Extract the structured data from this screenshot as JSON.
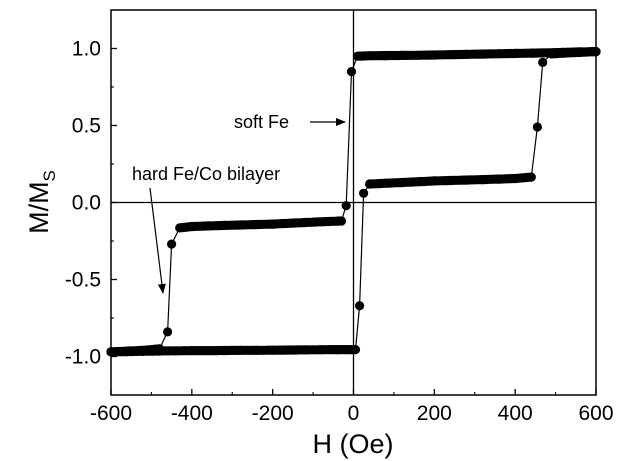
{
  "chart_data": {
    "type": "scatter",
    "xlabel": "H (Oe)",
    "ylabel_main": "M/M",
    "ylabel_sub": "S",
    "xlim": [
      -600,
      600
    ],
    "ylim": [
      -1.25,
      1.25
    ],
    "xticks": [
      -600,
      -400,
      -200,
      0,
      200,
      400,
      600
    ],
    "xtick_labels": [
      "-600",
      "-400",
      "-200",
      "0",
      "200",
      "400",
      "600"
    ],
    "yticks": [
      -1.0,
      -0.5,
      0.0,
      0.5,
      1.0
    ],
    "ytick_labels": [
      "-1.0",
      "-0.5",
      "0.0",
      "0.5",
      "1.0"
    ],
    "reference_lines": {
      "x": 0,
      "y": 0
    },
    "marker_color": "#000000",
    "annotations": [
      {
        "text": "soft Fe",
        "points_to": [
          -10,
          0.55
        ]
      },
      {
        "text": "hard Fe/Co bilayer",
        "points_to": [
          -465,
          -0.6
        ]
      }
    ],
    "series": [
      {
        "branch": "descending",
        "points": [
          [
            600,
            0.98
          ],
          [
            560,
            0.978
          ],
          [
            520,
            0.975
          ],
          [
            480,
            0.972
          ],
          [
            440,
            0.97
          ],
          [
            400,
            0.968
          ],
          [
            360,
            0.966
          ],
          [
            320,
            0.964
          ],
          [
            280,
            0.962
          ],
          [
            240,
            0.96
          ],
          [
            200,
            0.958
          ],
          [
            160,
            0.956
          ],
          [
            120,
            0.955
          ],
          [
            80,
            0.954
          ],
          [
            40,
            0.953
          ],
          [
            10,
            0.95
          ],
          [
            -5,
            0.85
          ],
          [
            -18,
            -0.02
          ],
          [
            -30,
            -0.12
          ],
          [
            -80,
            -0.125
          ],
          [
            -120,
            -0.13
          ],
          [
            -160,
            -0.135
          ],
          [
            -200,
            -0.14
          ],
          [
            -240,
            -0.143
          ],
          [
            -280,
            -0.146
          ],
          [
            -320,
            -0.149
          ],
          [
            -360,
            -0.152
          ],
          [
            -400,
            -0.156
          ],
          [
            -430,
            -0.165
          ],
          [
            -450,
            -0.27
          ],
          [
            -460,
            -0.84
          ],
          [
            -480,
            -0.95
          ],
          [
            -520,
            -0.96
          ],
          [
            -560,
            -0.965
          ],
          [
            -600,
            -0.97
          ]
        ]
      },
      {
        "branch": "ascending",
        "points": [
          [
            -600,
            -0.97
          ],
          [
            -560,
            -0.968
          ],
          [
            -520,
            -0.966
          ],
          [
            -480,
            -0.964
          ],
          [
            -440,
            -0.963
          ],
          [
            -400,
            -0.962
          ],
          [
            -360,
            -0.962
          ],
          [
            -320,
            -0.961
          ],
          [
            -280,
            -0.96
          ],
          [
            -240,
            -0.96
          ],
          [
            -200,
            -0.959
          ],
          [
            -160,
            -0.958
          ],
          [
            -120,
            -0.957
          ],
          [
            -80,
            -0.956
          ],
          [
            -40,
            -0.955
          ],
          [
            -10,
            -0.955
          ],
          [
            5,
            -0.955
          ],
          [
            15,
            -0.67
          ],
          [
            25,
            0.06
          ],
          [
            40,
            0.12
          ],
          [
            80,
            0.125
          ],
          [
            120,
            0.13
          ],
          [
            160,
            0.135
          ],
          [
            200,
            0.14
          ],
          [
            240,
            0.143
          ],
          [
            280,
            0.146
          ],
          [
            320,
            0.149
          ],
          [
            360,
            0.152
          ],
          [
            400,
            0.156
          ],
          [
            440,
            0.165
          ],
          [
            455,
            0.49
          ],
          [
            468,
            0.91
          ],
          [
            490,
            0.965
          ],
          [
            520,
            0.97
          ],
          [
            560,
            0.975
          ],
          [
            600,
            0.98
          ]
        ]
      }
    ]
  }
}
